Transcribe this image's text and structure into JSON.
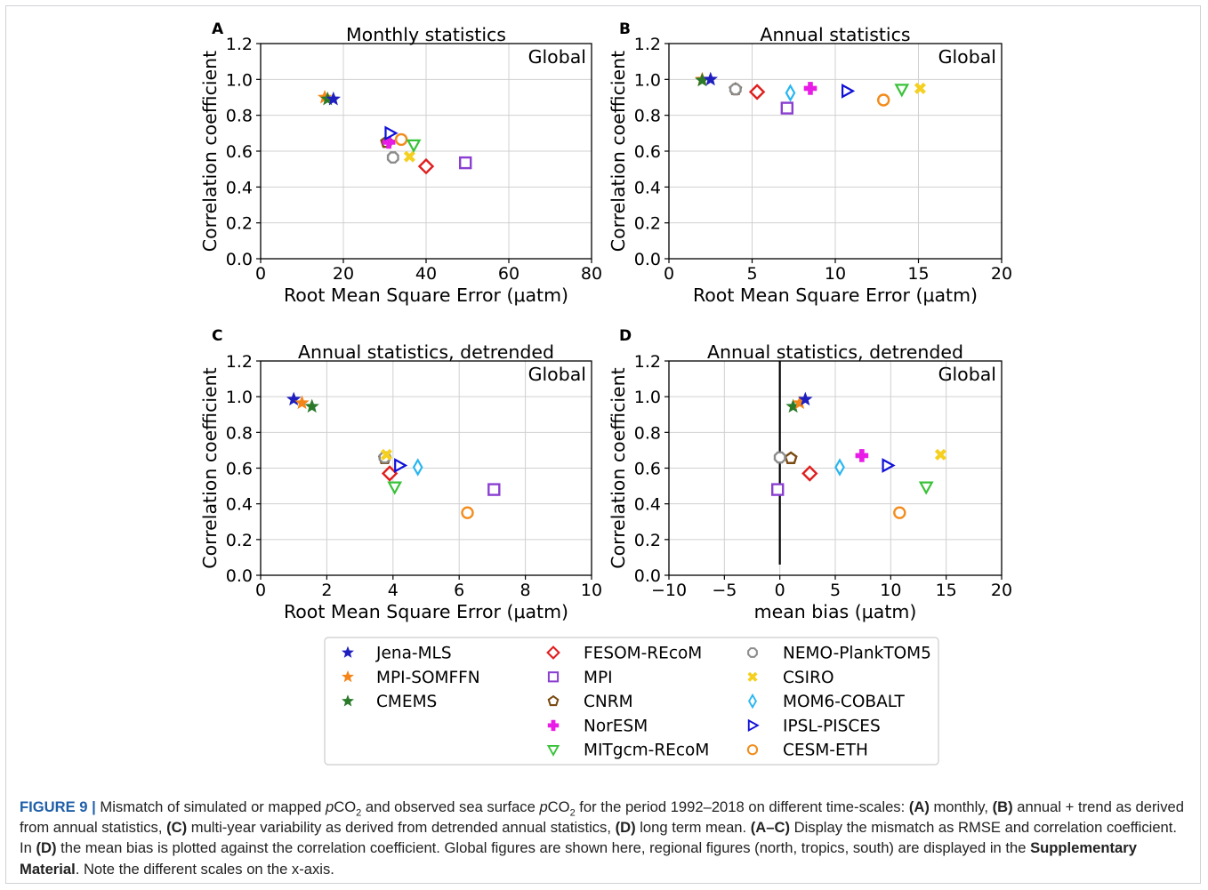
{
  "colors": {
    "Jena-MLS": "#1f1fbf",
    "MPI-SOMFFN": "#f58518",
    "CMEMS": "#2a7a2a",
    "FESOM-REcoM": "#e01e1e",
    "MPI": "#8a3fd1",
    "CNRM": "#7a4a12",
    "NorESM": "#e81ce6",
    "MITgcm-REcoM": "#38c238",
    "NEMO-PlankTOM5": "#8c8c8c",
    "CSIRO": "#f5d020",
    "MOM6-COBALT": "#29b6f0",
    "IPSL-PISCES": "#1010d8",
    "CESM-ETH": "#f28c1c"
  },
  "legend": [
    {
      "name": "Jena-MLS",
      "marker": "star-icon"
    },
    {
      "name": "MPI-SOMFFN",
      "marker": "star-icon"
    },
    {
      "name": "CMEMS",
      "marker": "star-icon"
    },
    {
      "name": "FESOM-REcoM",
      "marker": "diamond-icon"
    },
    {
      "name": "MPI",
      "marker": "square-icon"
    },
    {
      "name": "CNRM",
      "marker": "pentagon-icon"
    },
    {
      "name": "NorESM",
      "marker": "plus-icon"
    },
    {
      "name": "MITgcm-REcoM",
      "marker": "triangle-down-icon"
    },
    {
      "name": "NEMO-PlankTOM5",
      "marker": "octagon-icon"
    },
    {
      "name": "CSIRO",
      "marker": "x-icon"
    },
    {
      "name": "MOM6-COBALT",
      "marker": "thin-diamond-icon"
    },
    {
      "name": "IPSL-PISCES",
      "marker": "triangle-right-icon"
    },
    {
      "name": "CESM-ETH",
      "marker": "circle-icon"
    }
  ],
  "chart_data": [
    {
      "type": "scatter",
      "panel": "A",
      "title": "Monthly statistics",
      "region": "Global",
      "xlabel": "Root Mean Square Error (μatm)",
      "ylabel": "Correlation coefficient",
      "xlim": [
        0,
        80
      ],
      "ylim": [
        0,
        1.2
      ],
      "grid": true,
      "xticks": [
        0,
        20,
        40,
        60,
        80
      ],
      "yticks": [
        0.0,
        0.2,
        0.4,
        0.6,
        0.8,
        1.0,
        1.2
      ],
      "points": [
        {
          "series": "MPI-SOMFFN",
          "x": 15.5,
          "y": 0.9
        },
        {
          "series": "CMEMS",
          "x": 16.2,
          "y": 0.89
        },
        {
          "series": "Jena-MLS",
          "x": 17.6,
          "y": 0.89
        },
        {
          "series": "CNRM",
          "x": 30.5,
          "y": 0.65
        },
        {
          "series": "NorESM",
          "x": 31.0,
          "y": 0.65
        },
        {
          "series": "IPSL-PISCES",
          "x": 31.3,
          "y": 0.7
        },
        {
          "series": "NEMO-PlankTOM5",
          "x": 32.0,
          "y": 0.565
        },
        {
          "series": "CESM-ETH",
          "x": 34.0,
          "y": 0.665
        },
        {
          "series": "CSIRO",
          "x": 36.0,
          "y": 0.57
        },
        {
          "series": "MITgcm-REcoM",
          "x": 37.0,
          "y": 0.635
        },
        {
          "series": "FESOM-REcoM",
          "x": 40.0,
          "y": 0.515
        },
        {
          "series": "MPI",
          "x": 49.5,
          "y": 0.535
        }
      ]
    },
    {
      "type": "scatter",
      "panel": "B",
      "title": "Annual statistics",
      "region": "Global",
      "xlabel": "Root Mean Square Error (μatm)",
      "ylabel": "Correlation coefficient",
      "xlim": [
        0,
        20
      ],
      "ylim": [
        0,
        1.2
      ],
      "grid": true,
      "xticks": [
        0,
        5,
        10,
        15,
        20
      ],
      "yticks": [
        0.0,
        0.2,
        0.4,
        0.6,
        0.8,
        1.0,
        1.2
      ],
      "points": [
        {
          "series": "MPI-SOMFFN",
          "x": 2.0,
          "y": 1.0
        },
        {
          "series": "CMEMS",
          "x": 2.0,
          "y": 0.995
        },
        {
          "series": "Jena-MLS",
          "x": 2.5,
          "y": 1.0
        },
        {
          "series": "CNRM",
          "x": 4.0,
          "y": 0.945
        },
        {
          "series": "NEMO-PlankTOM5",
          "x": 4.0,
          "y": 0.945
        },
        {
          "series": "FESOM-REcoM",
          "x": 5.3,
          "y": 0.93
        },
        {
          "series": "MPI",
          "x": 7.1,
          "y": 0.84
        },
        {
          "series": "MOM6-COBALT",
          "x": 7.3,
          "y": 0.925
        },
        {
          "series": "NorESM",
          "x": 8.5,
          "y": 0.95
        },
        {
          "series": "IPSL-PISCES",
          "x": 10.7,
          "y": 0.935
        },
        {
          "series": "CESM-ETH",
          "x": 12.9,
          "y": 0.885
        },
        {
          "series": "MITgcm-REcoM",
          "x": 14.0,
          "y": 0.945
        },
        {
          "series": "CSIRO",
          "x": 15.1,
          "y": 0.95
        }
      ]
    },
    {
      "type": "scatter",
      "panel": "C",
      "title": "Annual statistics, detrended",
      "region": "Global",
      "xlabel": "Root Mean Square Error (μatm)",
      "ylabel": "Correlation coefficient",
      "xlim": [
        0,
        10
      ],
      "ylim": [
        0,
        1.2
      ],
      "grid": true,
      "xticks": [
        0,
        2,
        4,
        6,
        8,
        10
      ],
      "yticks": [
        0.0,
        0.2,
        0.4,
        0.6,
        0.8,
        1.0,
        1.2
      ],
      "points": [
        {
          "series": "Jena-MLS",
          "x": 1.0,
          "y": 0.985
        },
        {
          "series": "MPI-SOMFFN",
          "x": 1.25,
          "y": 0.965
        },
        {
          "series": "CMEMS",
          "x": 1.55,
          "y": 0.945
        },
        {
          "series": "CNRM",
          "x": 3.75,
          "y": 0.655
        },
        {
          "series": "NEMO-PlankTOM5",
          "x": 3.75,
          "y": 0.66
        },
        {
          "series": "CSIRO",
          "x": 3.8,
          "y": 0.675
        },
        {
          "series": "FESOM-REcoM",
          "x": 3.9,
          "y": 0.57
        },
        {
          "series": "MITgcm-REcoM",
          "x": 4.05,
          "y": 0.495
        },
        {
          "series": "IPSL-PISCES",
          "x": 4.2,
          "y": 0.615
        },
        {
          "series": "MOM6-COBALT",
          "x": 4.75,
          "y": 0.605
        },
        {
          "series": "CESM-ETH",
          "x": 6.25,
          "y": 0.35
        },
        {
          "series": "MPI",
          "x": 7.05,
          "y": 0.48
        }
      ]
    },
    {
      "type": "scatter",
      "panel": "D",
      "title": "Annual statistics, detrended",
      "region": "Global",
      "xlabel": "mean bias (μatm)",
      "ylabel": "Correlation coefficient",
      "xlim": [
        -10,
        20
      ],
      "ylim": [
        0,
        1.2
      ],
      "grid": true,
      "vline_x": 0,
      "xticks": [
        -10,
        -5,
        0,
        5,
        10,
        15,
        20
      ],
      "yticks": [
        0.0,
        0.2,
        0.4,
        0.6,
        0.8,
        1.0,
        1.2
      ],
      "points": [
        {
          "series": "CMEMS",
          "x": 1.2,
          "y": 0.945
        },
        {
          "series": "MPI-SOMFFN",
          "x": 1.8,
          "y": 0.965
        },
        {
          "series": "Jena-MLS",
          "x": 2.3,
          "y": 0.985
        },
        {
          "series": "CNRM",
          "x": 1.0,
          "y": 0.655
        },
        {
          "series": "NEMO-PlankTOM5",
          "x": 0.0,
          "y": 0.66
        },
        {
          "series": "MPI",
          "x": -0.2,
          "y": 0.48
        },
        {
          "series": "FESOM-REcoM",
          "x": 2.7,
          "y": 0.57
        },
        {
          "series": "MOM6-COBALT",
          "x": 5.4,
          "y": 0.605
        },
        {
          "series": "NorESM",
          "x": 7.4,
          "y": 0.67
        },
        {
          "series": "IPSL-PISCES",
          "x": 9.7,
          "y": 0.615
        },
        {
          "series": "CESM-ETH",
          "x": 10.8,
          "y": 0.35
        },
        {
          "series": "MITgcm-REcoM",
          "x": 13.2,
          "y": 0.495
        },
        {
          "series": "CSIRO",
          "x": 14.5,
          "y": 0.675
        }
      ]
    }
  ],
  "caption": {
    "label": "FIGURE 9 |",
    "t1": " Mismatch of simulated or mapped ",
    "p1": "p",
    "co2_1": "CO",
    "sub1": "2",
    "t2": " and observed sea surface ",
    "p2": "p",
    "co2_2": "CO",
    "sub2": "2",
    "t3": " for the period 1992–2018 on different time-scales: ",
    "bA": "(A)",
    "t4": " monthly, ",
    "bB": "(B)",
    "t5": " annual + trend as derived from annual statistics, ",
    "bC": "(C)",
    "t6": " multi-year variability as derived from detrended annual statistics, ",
    "bD": "(D)",
    "t7": " long term mean. ",
    "bAC": "(A–C)",
    "t8": " Display the mismatch as RMSE and correlation coefficient. In ",
    "bD2": "(D)",
    "t9": " the mean bias is plotted against the correlation coefficient. Global figures are shown here, regional figures (north, tropics, south) are displayed in the ",
    "bSupp": "Supplementary Material",
    "t10": ". Note the different scales on the x-axis."
  }
}
